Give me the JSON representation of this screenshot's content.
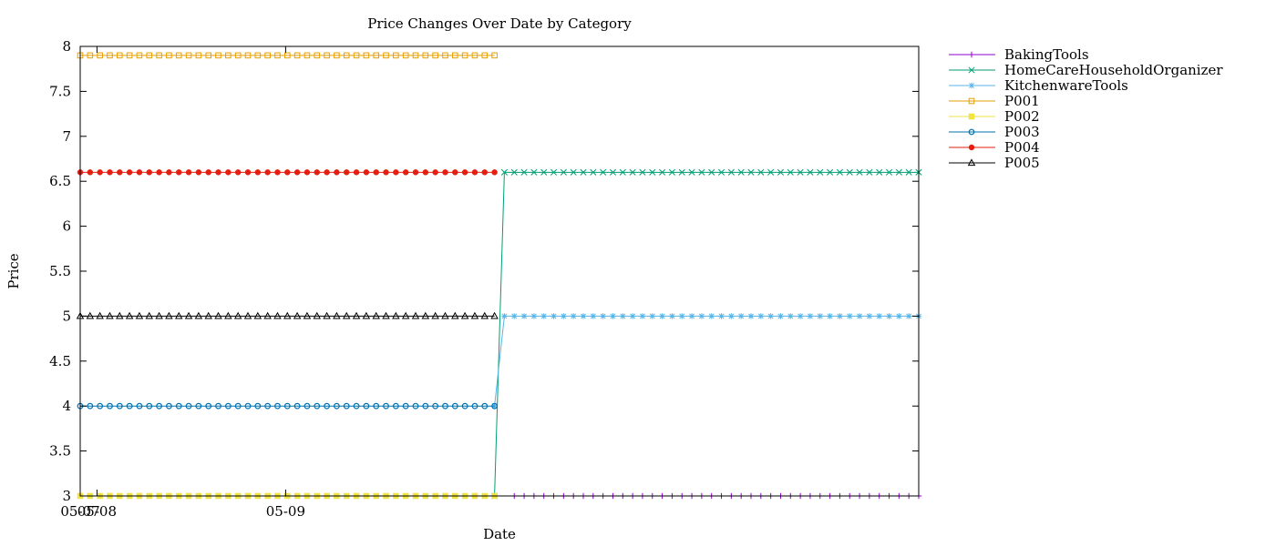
{
  "chart_data": {
    "type": "line",
    "title": "Price Changes Over Date by Category",
    "xlabel": "Date",
    "ylabel": "Price",
    "ylim": [
      3,
      8
    ],
    "yticks": [
      3,
      3.5,
      4,
      4.5,
      5,
      5.5,
      6,
      6.5,
      7,
      7.5,
      8
    ],
    "ytick_labels": [
      "3",
      "3.5",
      "4",
      "4.5",
      "5",
      "5.5",
      "6",
      "6.5",
      "7",
      "7.5",
      "8"
    ],
    "xticks": [
      {
        "label": "05-07",
        "pos": 0.0
      },
      {
        "label": "05-08",
        "pos": 0.02
      },
      {
        "label": "05-09",
        "pos": 0.245
      }
    ],
    "grid": false,
    "legend_position": "outside-top-right",
    "n_points": 86,
    "series": [
      {
        "name": "BakingTools",
        "color": "#9400d3",
        "marker": "plus",
        "start": 44,
        "end": 85,
        "from": 3.0,
        "value": 3.0
      },
      {
        "name": "HomeCareHouseholdOrganizer",
        "color": "#009e73",
        "marker": "cross",
        "start": 42,
        "end": 85,
        "from": 3.0,
        "value": 6.6
      },
      {
        "name": "KitchenwareTools",
        "color": "#56b4e9",
        "marker": "star",
        "start": 42,
        "end": 85,
        "from": 4.0,
        "value": 5.0
      },
      {
        "name": "P001",
        "color": "#e69f00",
        "marker": "square-open",
        "start": 0,
        "end": 42,
        "value": 7.9
      },
      {
        "name": "P002",
        "color": "#f0e442",
        "marker": "square-filled",
        "start": 0,
        "end": 42,
        "value": 3.0
      },
      {
        "name": "P003",
        "color": "#0072b2",
        "marker": "circle-open",
        "start": 0,
        "end": 42,
        "value": 4.0
      },
      {
        "name": "P004",
        "color": "#e51e10",
        "marker": "circle-filled",
        "start": 0,
        "end": 42,
        "value": 6.6
      },
      {
        "name": "P005",
        "color": "#000000",
        "marker": "triangle-open",
        "start": 0,
        "end": 42,
        "value": 5.0
      }
    ]
  }
}
